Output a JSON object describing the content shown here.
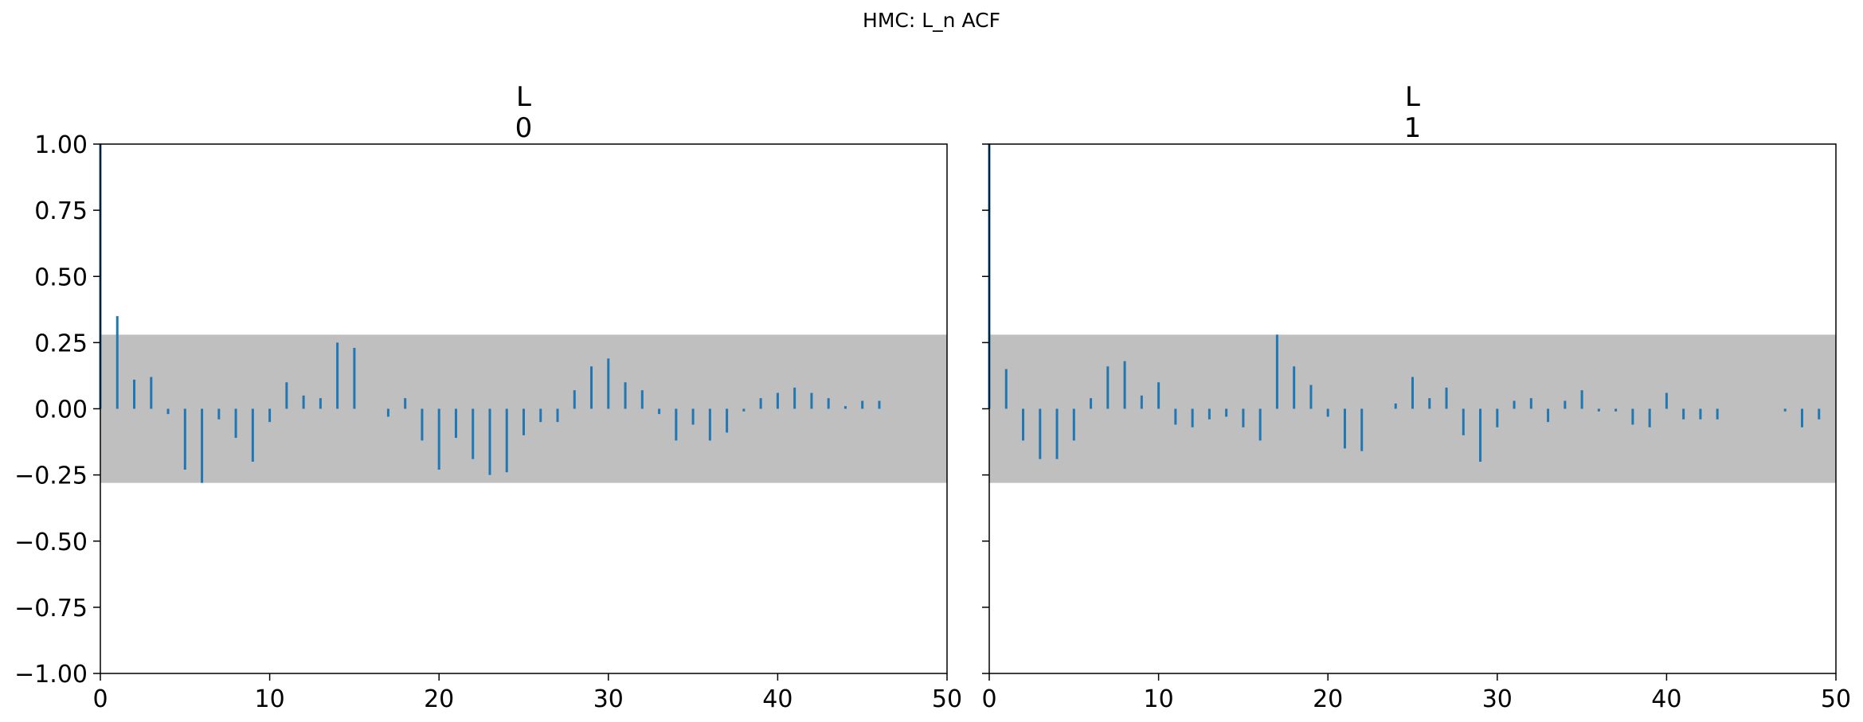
{
  "suptitle": "HMC: L_n ACF",
  "colors": {
    "stem": "#1f77b4",
    "band": "#bfbfbf",
    "axis": "#000000"
  },
  "chart_data": [
    {
      "type": "bar",
      "title_lines": [
        "L",
        "0"
      ],
      "xlim": [
        0,
        50
      ],
      "ylim": [
        -1,
        1
      ],
      "xticks": [
        0,
        10,
        20,
        30,
        40,
        50
      ],
      "yticks": [
        -1,
        -0.75,
        -0.5,
        -0.25,
        0,
        0.25,
        0.5,
        0.75,
        1
      ],
      "xtick_labels": [
        "0",
        "10",
        "20",
        "30",
        "40",
        "50"
      ],
      "ytick_labels": [
        "−1.00",
        "−0.75",
        "−0.50",
        "−0.25",
        "0.00",
        "0.25",
        "0.50",
        "0.75",
        "1.00"
      ],
      "confidence_band": [
        -0.28,
        0.28
      ],
      "lags": [
        0,
        1,
        2,
        3,
        4,
        5,
        6,
        7,
        8,
        9,
        10,
        11,
        12,
        13,
        14,
        15,
        16,
        17,
        18,
        19,
        20,
        21,
        22,
        23,
        24,
        25,
        26,
        27,
        28,
        29,
        30,
        31,
        32,
        33,
        34,
        35,
        36,
        37,
        38,
        39,
        40,
        41,
        42,
        43,
        44,
        45,
        46
      ],
      "values": [
        1.0,
        0.35,
        0.11,
        0.12,
        -0.02,
        -0.23,
        -0.28,
        -0.04,
        -0.11,
        -0.2,
        -0.05,
        0.1,
        0.05,
        0.04,
        0.25,
        0.23,
        0.0,
        -0.03,
        0.04,
        -0.12,
        -0.23,
        -0.11,
        -0.19,
        -0.25,
        -0.24,
        -0.1,
        -0.05,
        -0.05,
        0.07,
        0.16,
        0.19,
        0.1,
        0.07,
        -0.02,
        -0.12,
        -0.06,
        -0.12,
        -0.09,
        -0.01,
        0.04,
        0.06,
        0.08,
        0.06,
        0.04,
        0.01,
        0.03,
        0.03
      ]
    },
    {
      "type": "bar",
      "title_lines": [
        "L",
        "1"
      ],
      "xlim": [
        0,
        50
      ],
      "ylim": [
        -1,
        1
      ],
      "xticks": [
        0,
        10,
        20,
        30,
        40,
        50
      ],
      "yticks": [
        -1,
        -0.75,
        -0.5,
        -0.25,
        0,
        0.25,
        0.5,
        0.75,
        1
      ],
      "xtick_labels": [
        "0",
        "10",
        "20",
        "30",
        "40",
        "50"
      ],
      "ytick_labels": [],
      "confidence_band": [
        -0.28,
        0.28
      ],
      "lags": [
        0,
        1,
        2,
        3,
        4,
        5,
        6,
        7,
        8,
        9,
        10,
        11,
        12,
        13,
        14,
        15,
        16,
        17,
        18,
        19,
        20,
        21,
        22,
        23,
        24,
        25,
        26,
        27,
        28,
        29,
        30,
        31,
        32,
        33,
        34,
        35,
        36,
        37,
        38,
        39,
        40,
        41,
        42,
        43,
        44,
        45,
        46,
        47,
        48,
        49
      ],
      "values": [
        1.0,
        0.15,
        -0.12,
        -0.19,
        -0.19,
        -0.12,
        0.04,
        0.16,
        0.18,
        0.05,
        0.1,
        -0.06,
        -0.07,
        -0.04,
        -0.03,
        -0.07,
        -0.12,
        0.28,
        0.16,
        0.09,
        -0.03,
        -0.15,
        -0.16,
        0.0,
        0.02,
        0.12,
        0.04,
        0.08,
        -0.1,
        -0.2,
        -0.07,
        0.03,
        0.04,
        -0.05,
        0.03,
        0.07,
        -0.01,
        -0.01,
        -0.06,
        -0.07,
        0.06,
        -0.04,
        -0.04,
        -0.04,
        0.0,
        0.0,
        0.0,
        -0.01,
        -0.07,
        -0.04
      ]
    }
  ]
}
